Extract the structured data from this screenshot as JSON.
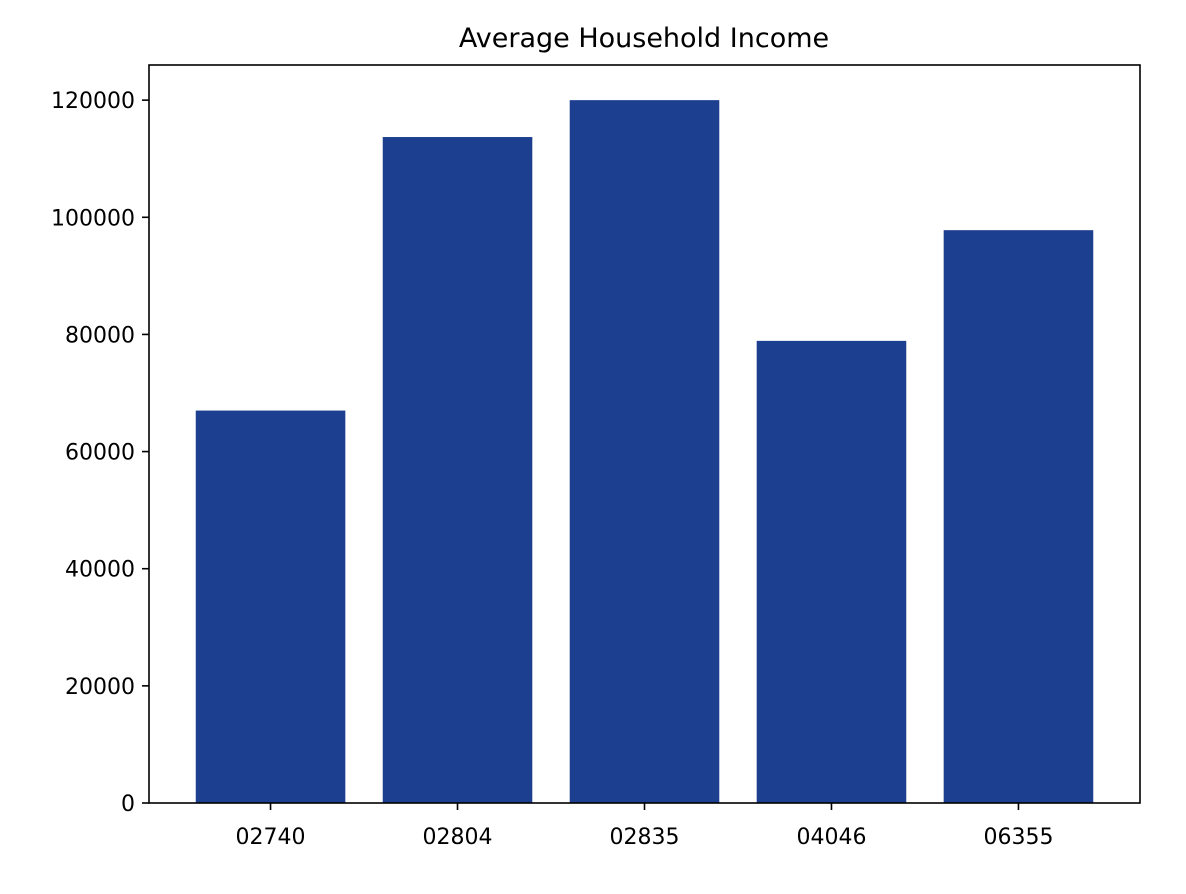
{
  "chart_data": {
    "type": "bar",
    "title": "Average Household Income",
    "xlabel": "",
    "ylabel": "",
    "categories": [
      "02740",
      "02804",
      "02835",
      "04046",
      "06355"
    ],
    "values": [
      67000,
      113700,
      120000,
      78900,
      97800
    ],
    "ylim": [
      0,
      126000
    ],
    "yticks": [
      0,
      20000,
      40000,
      60000,
      80000,
      100000,
      120000
    ],
    "ytick_labels": [
      "0",
      "20000",
      "40000",
      "60000",
      "80000",
      "100000",
      "120000"
    ],
    "grid": false,
    "legend": "none",
    "bar_color": "#1c3f8f"
  }
}
